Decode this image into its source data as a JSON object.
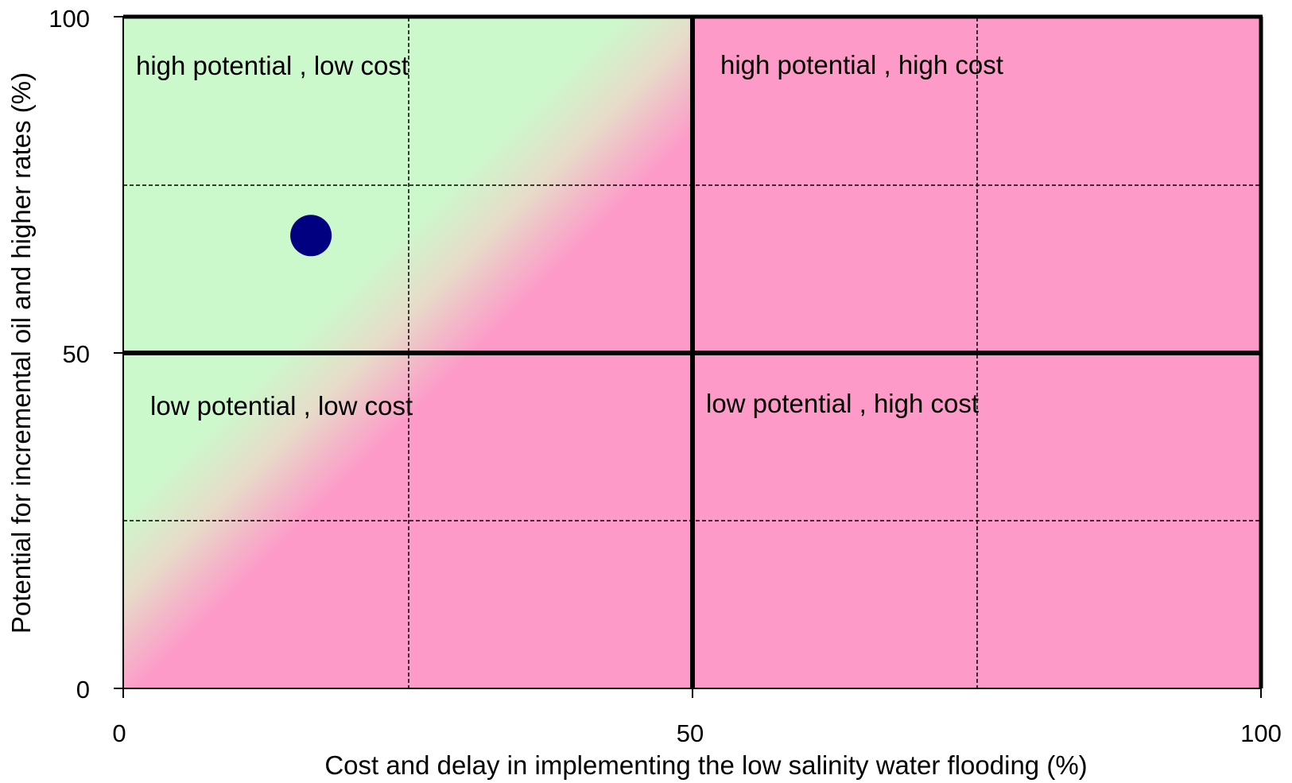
{
  "chart_data": {
    "type": "scatter",
    "title": "",
    "xlabel": "Cost and delay in implementing the low salinity water flooding (%)",
    "ylabel": "Potential for incremental oil and higher rates (%)",
    "xlim": [
      0,
      100
    ],
    "ylim": [
      0,
      100
    ],
    "x_ticks": [
      "0",
      "50",
      "100"
    ],
    "y_ticks": [
      "0",
      "50",
      "100"
    ],
    "grid": true,
    "quadrants": [
      {
        "label": "high potential , low cost",
        "color": "#ccf9cc"
      },
      {
        "label": "high potential , high cost",
        "color": "#fd9ac8"
      },
      {
        "label": "low potential , low cost",
        "color": "#ccf9cc"
      },
      {
        "label": "low potential , high cost",
        "color": "#fd9ac8"
      }
    ],
    "points": [
      {
        "x": 16.5,
        "y": 67.5,
        "color": "#000080"
      }
    ]
  }
}
